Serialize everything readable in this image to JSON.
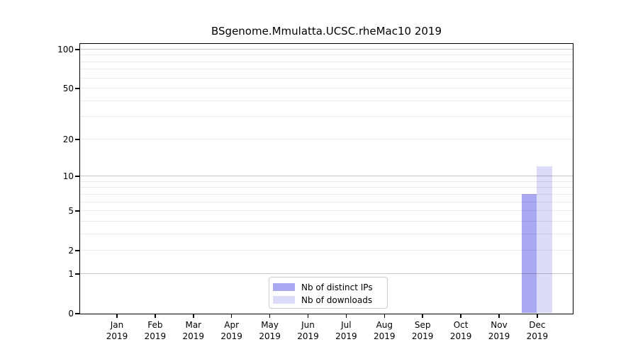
{
  "chart_data": {
    "type": "bar",
    "title": "BSgenome.Mmulatta.UCSC.rheMac10 2019",
    "x_categories": [
      {
        "month": "Jan",
        "year": "2019"
      },
      {
        "month": "Feb",
        "year": "2019"
      },
      {
        "month": "Mar",
        "year": "2019"
      },
      {
        "month": "Apr",
        "year": "2019"
      },
      {
        "month": "May",
        "year": "2019"
      },
      {
        "month": "Jun",
        "year": "2019"
      },
      {
        "month": "Jul",
        "year": "2019"
      },
      {
        "month": "Aug",
        "year": "2019"
      },
      {
        "month": "Sep",
        "year": "2019"
      },
      {
        "month": "Oct",
        "year": "2019"
      },
      {
        "month": "Nov",
        "year": "2019"
      },
      {
        "month": "Dec",
        "year": "2019"
      }
    ],
    "series": [
      {
        "name": "Nb of distinct IPs",
        "color": "#a9a9f2",
        "values": [
          0,
          0,
          0,
          0,
          0,
          0,
          0,
          0,
          0,
          0,
          0,
          7
        ]
      },
      {
        "name": "Nb of downloads",
        "color": "#dcdcf8",
        "values": [
          0,
          0,
          0,
          0,
          0,
          0,
          0,
          0,
          0,
          0,
          0,
          12
        ]
      }
    ],
    "y_axis": {
      "scale": "log1p",
      "tick_values": [
        0,
        1,
        2,
        5,
        10,
        20,
        50,
        100
      ],
      "major_gridlines": [
        1,
        10,
        100
      ],
      "minor_gridlines": [
        2,
        3,
        4,
        5,
        6,
        7,
        8,
        9,
        20,
        30,
        40,
        50,
        60,
        70,
        80,
        90
      ],
      "ylim": [
        0,
        111
      ]
    },
    "colors": {
      "bar_distinct_ips": "#a9a9f2",
      "bar_downloads": "#dcdcf8",
      "grid_major": "rgba(0,0,0,0.22)",
      "grid_minor": "rgba(0,0,0,0.08)",
      "axis": "#000000",
      "legend_border": "#cccccc"
    },
    "legend": {
      "position": "bottom-center",
      "entries": [
        "Nb of distinct IPs",
        "Nb of downloads"
      ]
    }
  }
}
